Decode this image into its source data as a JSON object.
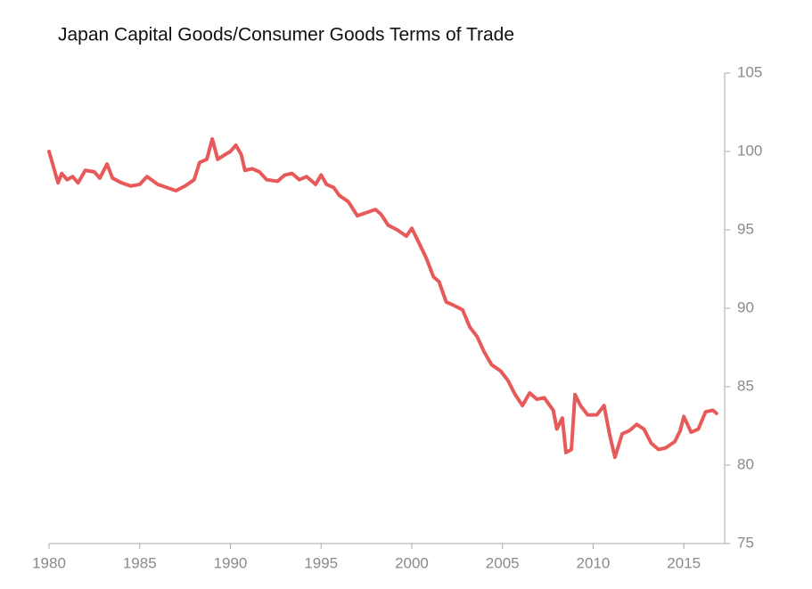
{
  "chart_data": {
    "type": "line",
    "title": "Japan Capital Goods/Consumer Goods Terms of Trade",
    "x": [
      1980.0,
      1980.2,
      1980.5,
      1980.7,
      1981.0,
      1981.3,
      1981.6,
      1982.0,
      1982.5,
      1982.8,
      1983.2,
      1983.5,
      1984.0,
      1984.5,
      1985.0,
      1985.4,
      1986.0,
      1986.5,
      1987.0,
      1987.5,
      1988.0,
      1988.3,
      1988.7,
      1989.0,
      1989.3,
      1989.7,
      1990.0,
      1990.3,
      1990.6,
      1990.8,
      1991.2,
      1991.6,
      1992.0,
      1992.6,
      1993.0,
      1993.4,
      1993.8,
      1994.2,
      1994.7,
      1995.0,
      1995.3,
      1995.7,
      1996.0,
      1996.5,
      1997.0,
      1997.5,
      1998.0,
      1998.3,
      1998.7,
      1999.2,
      1999.7,
      2000.0,
      2000.3,
      2000.8,
      2001.2,
      2001.5,
      2001.9,
      2002.3,
      2002.8,
      2003.2,
      2003.6,
      2004.0,
      2004.4,
      2004.9,
      2005.3,
      2005.7,
      2006.1,
      2006.5,
      2006.9,
      2007.3,
      2007.8,
      2008.0,
      2008.3,
      2008.5,
      2008.8,
      2009.0,
      2009.3,
      2009.7,
      2010.2,
      2010.6,
      2010.9,
      2011.2,
      2011.6,
      2012.0,
      2012.4,
      2012.8,
      2013.2,
      2013.6,
      2014.0,
      2014.5,
      2014.8,
      2015.0,
      2015.4,
      2015.8,
      2016.2,
      2016.6,
      2016.8
    ],
    "series": [
      {
        "color": "#e85a5a",
        "axis": "y2",
        "values": [
          100,
          99.2,
          98.0,
          98.6,
          98.2,
          98.4,
          98.0,
          98.8,
          98.7,
          98.3,
          99.2,
          98.3,
          98.0,
          97.8,
          97.9,
          98.4,
          97.9,
          97.7,
          97.5,
          97.8,
          98.2,
          99.3,
          99.5,
          100.8,
          99.5,
          99.8,
          100,
          100.4,
          99.8,
          98.8,
          98.9,
          98.7,
          98.2,
          98.1,
          98.5,
          98.6,
          98.2,
          98.4,
          97.9,
          98.5,
          97.9,
          97.7,
          97.2,
          96.8,
          95.9,
          96.1,
          96.3,
          96.0,
          95.3,
          95.0,
          94.6,
          95.1,
          94.4,
          93.2,
          92.0,
          91.7,
          90.4,
          90.2,
          89.9,
          88.8,
          88.2,
          87.2,
          86.4,
          86.0,
          85.4,
          84.5,
          83.8,
          84.6,
          84.2,
          84.3,
          83.5,
          82.3,
          83.0,
          80.8,
          81.0,
          84.5,
          83.8,
          83.2,
          83.2,
          83.8,
          82.0,
          80.5,
          82.0,
          82.2,
          82.6,
          82.3,
          81.4,
          81.0,
          81.1,
          81.5,
          82.2,
          83.1,
          82.1,
          82.3,
          83.4,
          83.5,
          83.3
        ]
      }
    ],
    "xlim": [
      1980,
      2017.25
    ],
    "xticks": [
      1980,
      1985,
      1990,
      1995,
      2000,
      2005,
      2010,
      2015
    ],
    "y2lim": [
      75,
      105
    ],
    "y2ticks": [
      75,
      80,
      85,
      90,
      95,
      100,
      105
    ]
  }
}
